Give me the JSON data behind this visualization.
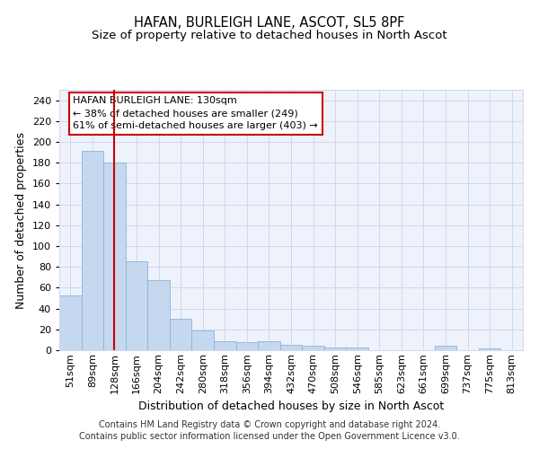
{
  "title": "HAFAN, BURLEIGH LANE, ASCOT, SL5 8PF",
  "subtitle": "Size of property relative to detached houses in North Ascot",
  "xlabel": "Distribution of detached houses by size in North Ascot",
  "ylabel": "Number of detached properties",
  "categories": [
    "51sqm",
    "89sqm",
    "128sqm",
    "166sqm",
    "204sqm",
    "242sqm",
    "280sqm",
    "318sqm",
    "356sqm",
    "394sqm",
    "432sqm",
    "470sqm",
    "508sqm",
    "546sqm",
    "585sqm",
    "623sqm",
    "661sqm",
    "699sqm",
    "737sqm",
    "775sqm",
    "813sqm"
  ],
  "values": [
    53,
    191,
    180,
    85,
    67,
    30,
    19,
    9,
    8,
    9,
    5,
    4,
    3,
    3,
    0,
    0,
    0,
    4,
    0,
    2,
    0
  ],
  "bar_color": "#c5d8f0",
  "bar_edgecolor": "#8ab4d8",
  "vline_x": 2,
  "vline_color": "#cc0000",
  "annotation_line1": "HAFAN BURLEIGH LANE: 130sqm",
  "annotation_line2": "← 38% of detached houses are smaller (249)",
  "annotation_line3": "61% of semi-detached houses are larger (403) →",
  "annotation_box_color": "#ffffff",
  "annotation_box_edgecolor": "#cc0000",
  "ylim": [
    0,
    250
  ],
  "yticks": [
    0,
    20,
    40,
    60,
    80,
    100,
    120,
    140,
    160,
    180,
    200,
    220,
    240
  ],
  "background_color": "#eef2fb",
  "grid_color": "#d0d8ee",
  "footer1": "Contains HM Land Registry data © Crown copyright and database right 2024.",
  "footer2": "Contains public sector information licensed under the Open Government Licence v3.0.",
  "title_fontsize": 10.5,
  "subtitle_fontsize": 9.5,
  "xlabel_fontsize": 9,
  "ylabel_fontsize": 9,
  "tick_fontsize": 8,
  "annotation_fontsize": 8,
  "footer_fontsize": 7
}
